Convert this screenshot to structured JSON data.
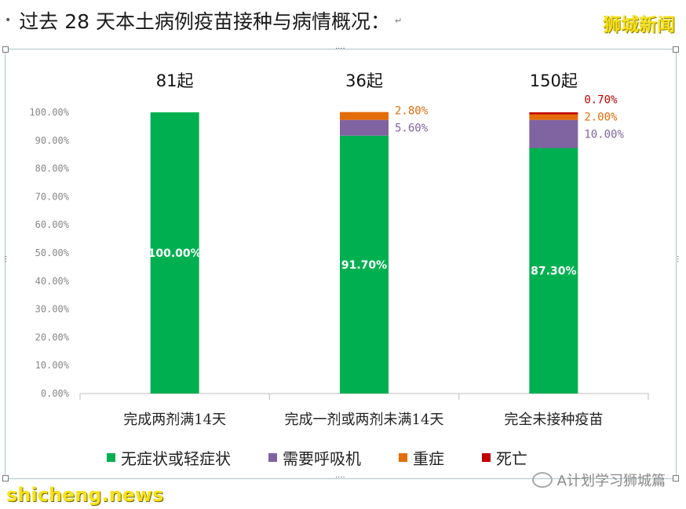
{
  "header": {
    "bullet": "•",
    "title": "过去 28 天本土病例疫苗接种与病情概况：",
    "return_mark": "↵",
    "logo": "狮城新闻"
  },
  "footer": {
    "watermark_left": "shicheng.news",
    "watermark_right": "A计划学习狮城篇"
  },
  "colors": {
    "asymptomatic": "#00b050",
    "oxygen": "#8064a2",
    "severe": "#e46c0a",
    "death": "#c00000"
  },
  "chart_data": {
    "type": "bar",
    "stacked": true,
    "categories": [
      "完成两剂满14天",
      "完成一剂或两剂未满14天",
      "完全未接种疫苗"
    ],
    "totals": [
      "81起",
      "36起",
      "150起"
    ],
    "series": [
      {
        "name": "无症状或轻症状",
        "values": [
          100.0,
          91.7,
          87.3
        ],
        "labels": [
          "100.00%",
          "91.70%",
          "87.30%"
        ],
        "color": "#00b050"
      },
      {
        "name": "需要呼吸机",
        "values": [
          0,
          5.6,
          10.0
        ],
        "labels": [
          "",
          "5.60%",
          "10.00%"
        ],
        "color": "#8064a2"
      },
      {
        "name": "重症",
        "values": [
          0,
          2.8,
          2.0
        ],
        "labels": [
          "",
          "2.80%",
          "2.00%"
        ],
        "color": "#e46c0a"
      },
      {
        "name": "死亡",
        "values": [
          0,
          0,
          0.7
        ],
        "labels": [
          "",
          "",
          "0.70%"
        ],
        "color": "#c00000"
      }
    ],
    "ylim": [
      0,
      100
    ],
    "yticks": [
      "0.00%",
      "10.00%",
      "20.00%",
      "30.00%",
      "40.00%",
      "50.00%",
      "60.00%",
      "70.00%",
      "80.00%",
      "90.00%",
      "100.00%"
    ],
    "grid": false,
    "legend": "bottom"
  }
}
